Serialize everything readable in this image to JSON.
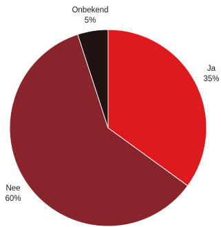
{
  "chart_data": {
    "type": "pie",
    "slices": [
      {
        "label": "Ja",
        "value": 35,
        "value_label": "35%",
        "color": "#df1a1e"
      },
      {
        "label": "Nee",
        "value": 60,
        "value_label": "60%",
        "color": "#87252b"
      },
      {
        "label": "Onbekend",
        "value": 5,
        "value_label": "5%",
        "color": "#211214"
      }
    ],
    "start": "top",
    "direction": "clockwise",
    "slice_border_color": "#ffffff"
  }
}
